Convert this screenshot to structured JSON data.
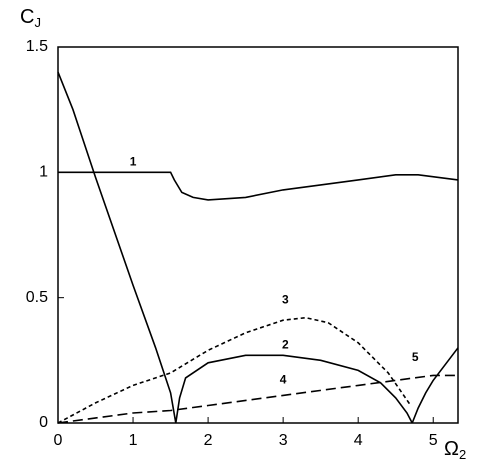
{
  "chart_data": {
    "type": "line",
    "y_label": {
      "text": "C",
      "sub": "J"
    },
    "x_label": {
      "text": "Ω",
      "sub": "2"
    },
    "xlim": [
      0,
      5.33
    ],
    "ylim": [
      0,
      1.5
    ],
    "xticks": [
      0,
      1,
      2,
      3,
      4,
      5
    ],
    "yticks": [
      0,
      0.5,
      1,
      1.5
    ],
    "series": [
      {
        "name": "1",
        "color": "#000000",
        "dash": "solid",
        "x": [
          0,
          1.5,
          1.55,
          1.65,
          1.8,
          2,
          2.5,
          3,
          3.5,
          4,
          4.5,
          4.8,
          5.33
        ],
        "values": [
          1,
          1,
          0.97,
          0.92,
          0.9,
          0.89,
          0.9,
          0.93,
          0.95,
          0.97,
          0.99,
          0.99,
          0.97
        ]
      },
      {
        "name": "2",
        "color": "#000000",
        "dash": "solid",
        "x": [
          0,
          0.2,
          0.5,
          1,
          1.3,
          1.5,
          1.57,
          1.62,
          1.7,
          2,
          2.5,
          3,
          3.5,
          4,
          4.3,
          4.5,
          4.65,
          4.72
        ],
        "values": [
          1.4,
          1.25,
          0.98,
          0.55,
          0.3,
          0.12,
          0,
          0.1,
          0.18,
          0.24,
          0.27,
          0.27,
          0.25,
          0.21,
          0.16,
          0.1,
          0.04,
          0
        ]
      },
      {
        "name": "3",
        "color": "#000000",
        "dash": "short",
        "x": [
          0,
          0.5,
          1,
          1.5,
          2,
          2.5,
          3,
          3.3,
          3.6,
          4,
          4.4,
          4.7
        ],
        "values": [
          0,
          0.08,
          0.15,
          0.2,
          0.29,
          0.36,
          0.41,
          0.42,
          0.4,
          0.32,
          0.2,
          0.07
        ]
      },
      {
        "name": "4",
        "color": "#000000",
        "dash": "long",
        "x": [
          0,
          1,
          1.5,
          2,
          3,
          4,
          4.5,
          5,
          5.33
        ],
        "values": [
          0,
          0.04,
          0.05,
          0.07,
          0.11,
          0.15,
          0.17,
          0.19,
          0.19
        ]
      },
      {
        "name": "5",
        "color": "#000000",
        "dash": "solid",
        "x": [
          4.72,
          4.8,
          4.9,
          5.0,
          5.33
        ],
        "values": [
          0,
          0.06,
          0.12,
          0.17,
          0.3
        ]
      }
    ]
  }
}
